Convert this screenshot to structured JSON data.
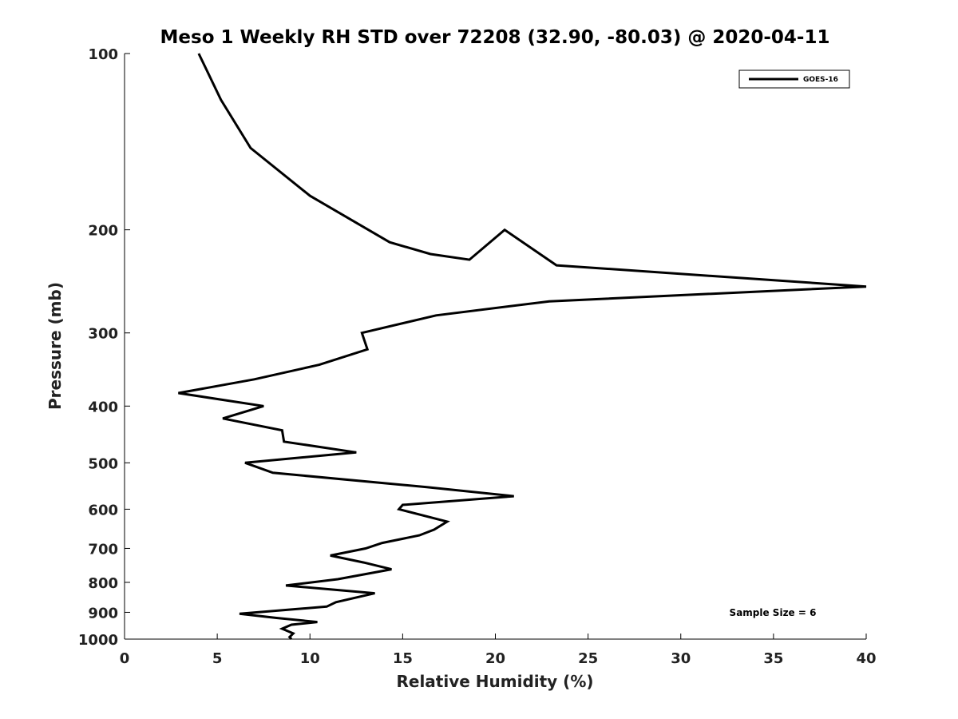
{
  "chart_data": {
    "type": "line",
    "title": "Meso 1 Weekly RH STD over 72208 (32.90, -80.03) @ 2020-04-11",
    "xlabel": "Relative Humidity (%)",
    "ylabel": "Pressure (mb)",
    "xlim": [
      0,
      40
    ],
    "ylim": [
      100,
      1000
    ],
    "y_scale": "log",
    "y_reversed": true,
    "grid": false,
    "legend_position": "top-right",
    "x_ticks": [
      0,
      5,
      10,
      15,
      20,
      25,
      30,
      35,
      40
    ],
    "y_ticks": [
      100,
      200,
      300,
      400,
      500,
      600,
      700,
      800,
      900,
      1000
    ],
    "annotation": "Sample Size = 6",
    "series": [
      {
        "name": "GOES-16",
        "color": "#000000",
        "points": [
          [
            4.0,
            100
          ],
          [
            5.2,
            120
          ],
          [
            6.8,
            145
          ],
          [
            10.0,
            175
          ],
          [
            14.3,
            210
          ],
          [
            16.5,
            220
          ],
          [
            18.6,
            225
          ],
          [
            20.5,
            200
          ],
          [
            23.3,
            230
          ],
          [
            40.0,
            250
          ],
          [
            22.9,
            265
          ],
          [
            16.8,
            280
          ],
          [
            12.8,
            300
          ],
          [
            13.1,
            320
          ],
          [
            10.5,
            340
          ],
          [
            7.0,
            360
          ],
          [
            2.9,
            380
          ],
          [
            7.5,
            400
          ],
          [
            5.3,
            420
          ],
          [
            8.5,
            440
          ],
          [
            8.6,
            460
          ],
          [
            12.5,
            480
          ],
          [
            6.5,
            500
          ],
          [
            8.0,
            520
          ],
          [
            16.3,
            550
          ],
          [
            21.0,
            570
          ],
          [
            15.0,
            590
          ],
          [
            14.8,
            600
          ],
          [
            17.4,
            630
          ],
          [
            16.7,
            650
          ],
          [
            15.9,
            665
          ],
          [
            13.9,
            685
          ],
          [
            13.0,
            700
          ],
          [
            11.1,
            720
          ],
          [
            12.9,
            740
          ],
          [
            14.4,
            760
          ],
          [
            11.5,
            790
          ],
          [
            8.7,
            810
          ],
          [
            13.5,
            835
          ],
          [
            11.4,
            865
          ],
          [
            10.9,
            880
          ],
          [
            6.2,
            905
          ],
          [
            8.2,
            920
          ],
          [
            10.4,
            935
          ],
          [
            9.0,
            945
          ],
          [
            8.5,
            960
          ],
          [
            9.1,
            978
          ],
          [
            8.9,
            992
          ],
          [
            9.0,
            1000
          ]
        ]
      }
    ]
  }
}
